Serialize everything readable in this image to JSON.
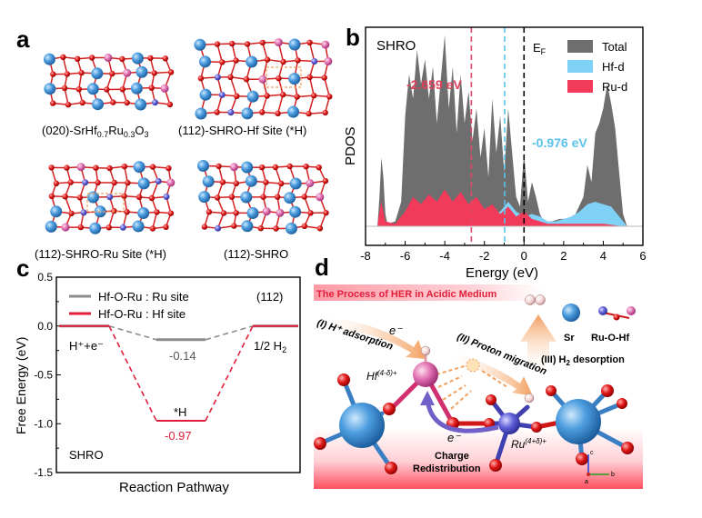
{
  "panel_a": {
    "label": "a",
    "captions": {
      "c1_pre": "(020)-SrHf",
      "c1_sub1": "0.7",
      "c1_mid": "Ru",
      "c1_sub2": "0.3",
      "c1_post": "O",
      "c1_sub3": "3",
      "c2": "(112)-SHRO-Hf Site (*H)",
      "c3": "(112)-SHRO-Ru Site (*H)",
      "c4": "(112)-SHRO"
    }
  },
  "panel_b": {
    "label": "b",
    "title": "SHRO",
    "ylabel": "PDOS",
    "xlabel": "Energy (eV)",
    "ef_label": "E",
    "ef_sub": "F",
    "ru_center_label": "-2.659 eV",
    "hf_center_label": "-0.976 eV",
    "legend": [
      "Total",
      "Hf-d",
      "Ru-d"
    ],
    "colors": {
      "total": "#6e6e6e",
      "hf": "#7fd1f5",
      "ru": "#f23a5a"
    }
  },
  "panel_c": {
    "label": "c",
    "tag": "(112)",
    "ylabel": "Free Energy (eV)",
    "xlabel": "Reaction Pathway",
    "bottom_label": "SHRO",
    "legend_ru": "Hf-O-Ru : Ru site",
    "legend_hf": "Hf-O-Ru : Hf site",
    "state_left": "H⁺+e⁻",
    "state_right_pre": "1/2 H",
    "state_right_sub": "2",
    "star_h": "*H",
    "val_ru": "-0.14",
    "val_hf": "-0.97",
    "colors": {
      "ru": "#8c8c8c",
      "hf": "#e0203c"
    }
  },
  "panel_d": {
    "label": "d",
    "title": "The Process of HER in Acidic Medium",
    "step1": "(I) H⁺ adsorption",
    "step2": "(II) Proton migration",
    "step3_pre": "(III) H",
    "step3_sub": "2",
    "step3_post": " desorption",
    "electron1": "e⁻",
    "electron2": "e⁻",
    "hf_label": "Hf",
    "hf_sup": "(4-δ)+",
    "ru_label": "Ru",
    "ru_sup": "(4+δ)+",
    "charge_line1": "Charge",
    "charge_line2": "Redistribution",
    "legend_sr": "Sr",
    "legend_bond": "Ru-O-Hf",
    "axis_c": "c",
    "axis_b": "b",
    "axis_a": "a"
  },
  "chart_data": [
    {
      "type": "area",
      "title": "SHRO",
      "xlabel": "Energy (eV)",
      "ylabel": "PDOS",
      "xlim": [
        -8,
        6
      ],
      "xticks": [
        -8,
        -6,
        -4,
        -2,
        0,
        2,
        4,
        6
      ],
      "series": [
        {
          "name": "Total",
          "x": [
            -7.4,
            -7.3,
            -7.2,
            -7.1,
            -7.0,
            -6.9,
            -6.5,
            -6.2,
            -6.0,
            -5.8,
            -5.6,
            -5.4,
            -5.2,
            -5.0,
            -4.8,
            -4.6,
            -4.4,
            -4.2,
            -4.0,
            -3.8,
            -3.6,
            -3.4,
            -3.2,
            -3.0,
            -2.8,
            -2.6,
            -2.4,
            -2.2,
            -2.0,
            -1.8,
            -1.6,
            -1.4,
            -1.2,
            -1.0,
            -0.8,
            -0.6,
            -0.4,
            -0.2,
            0.0,
            0.2,
            0.4,
            0.6,
            0.8,
            1.0,
            1.4,
            1.8,
            2.2,
            2.6,
            3.0,
            3.2,
            3.4,
            3.6,
            3.8,
            4.0,
            4.2,
            4.4,
            4.6,
            4.8,
            5.0,
            5.2
          ],
          "y": [
            0.0,
            0.12,
            0.28,
            0.2,
            0.05,
            0.01,
            0.02,
            0.1,
            0.45,
            0.62,
            0.52,
            0.72,
            0.58,
            0.68,
            0.52,
            0.65,
            0.42,
            0.6,
            0.78,
            0.48,
            0.65,
            0.38,
            0.62,
            0.42,
            0.55,
            0.35,
            0.48,
            0.28,
            0.4,
            0.2,
            0.52,
            0.3,
            0.45,
            0.22,
            0.48,
            0.3,
            0.12,
            0.08,
            0.3,
            0.1,
            0.18,
            0.12,
            0.05,
            0.02,
            0.02,
            0.03,
            0.03,
            0.05,
            0.12,
            0.25,
            0.18,
            0.38,
            0.42,
            0.48,
            0.58,
            0.5,
            0.4,
            0.22,
            0.05,
            0.0
          ]
        },
        {
          "name": "Hf-d",
          "x": [
            -7.4,
            -7.2,
            -7.0,
            -6.5,
            -6.0,
            -5.0,
            -4.0,
            -3.0,
            -2.0,
            -1.6,
            -1.2,
            -0.8,
            -0.4,
            0.0,
            0.4,
            0.8,
            1.2,
            1.6,
            2.0,
            2.4,
            2.8,
            3.2,
            3.6,
            4.0,
            4.4,
            4.8,
            5.2
          ],
          "y": [
            0.0,
            0.01,
            0.0,
            0.01,
            0.02,
            0.02,
            0.03,
            0.03,
            0.04,
            0.05,
            0.06,
            0.1,
            0.06,
            0.04,
            0.05,
            0.04,
            0.02,
            0.02,
            0.03,
            0.04,
            0.06,
            0.09,
            0.1,
            0.09,
            0.08,
            0.04,
            0.0
          ]
        },
        {
          "name": "Ru-d",
          "x": [
            -7.4,
            -7.3,
            -7.2,
            -7.0,
            -6.5,
            -6.0,
            -5.6,
            -5.2,
            -4.8,
            -4.4,
            -4.0,
            -3.6,
            -3.2,
            -2.8,
            -2.4,
            -2.0,
            -1.6,
            -1.2,
            -0.8,
            -0.4,
            0.0,
            0.4,
            0.8,
            1.2,
            2.0,
            3.0,
            4.0,
            5.0,
            5.2
          ],
          "y": [
            0.0,
            0.06,
            0.1,
            0.02,
            0.01,
            0.06,
            0.12,
            0.09,
            0.13,
            0.1,
            0.15,
            0.1,
            0.14,
            0.09,
            0.12,
            0.07,
            0.09,
            0.05,
            0.08,
            0.04,
            0.06,
            0.03,
            0.02,
            0.01,
            0.01,
            0.01,
            0.01,
            0.0,
            0.0
          ]
        }
      ],
      "vlines": [
        {
          "x": -2.659,
          "label": "-2.659 eV",
          "color": "#e04a6a"
        },
        {
          "x": -0.976,
          "label": "-0.976 eV",
          "color": "#58c2ea"
        },
        {
          "x": 0,
          "label": "EF",
          "color": "#000000"
        }
      ]
    },
    {
      "type": "line",
      "title": "(112)",
      "xlabel": "Reaction Pathway",
      "ylabel": "Free Energy (eV)",
      "ylim": [
        -1.5,
        0.5
      ],
      "yticks": [
        0.5,
        0.0,
        -0.5,
        -1.0,
        -1.5
      ],
      "categories": [
        "H+ + e-",
        "*H",
        "1/2 H2"
      ],
      "series": [
        {
          "name": "Hf-O-Ru : Ru site",
          "values": [
            0,
            -0.14,
            0
          ]
        },
        {
          "name": "Hf-O-Ru : Hf site",
          "values": [
            0,
            -0.97,
            0
          ]
        }
      ]
    }
  ]
}
